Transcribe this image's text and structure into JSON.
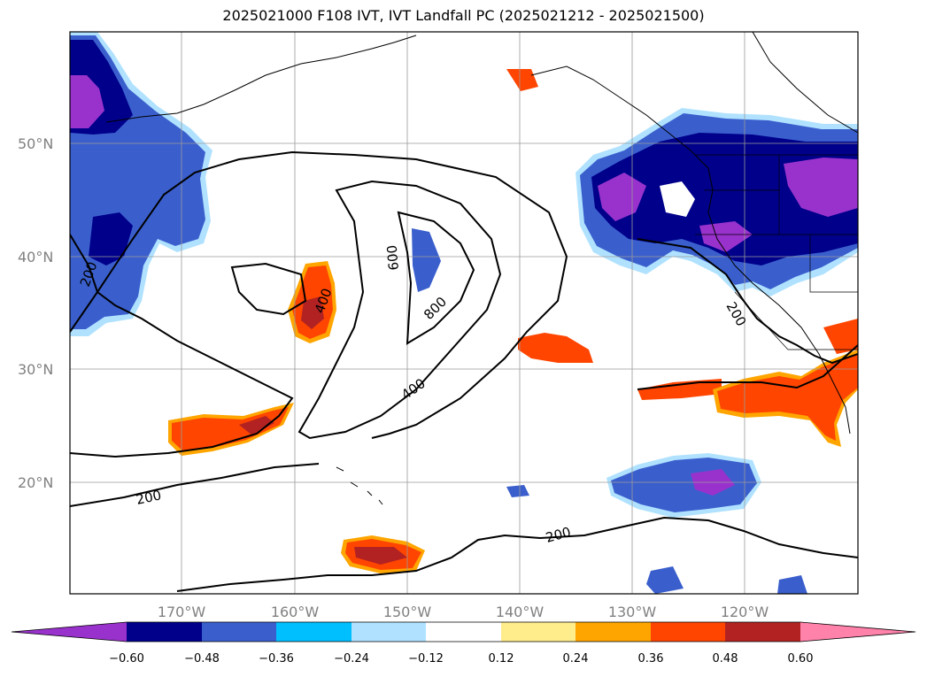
{
  "title": "2025021000 F108 IVT, IVT Landfall PC (2025021212 - 2025021500)",
  "map": {
    "lat_labels": [
      "50°N",
      "40°N",
      "30°N",
      "20°N"
    ],
    "lon_labels": [
      "170°W",
      "160°W",
      "150°W",
      "140°W",
      "130°W",
      "120°W"
    ],
    "contour_labels": [
      "200",
      "400",
      "600",
      "800",
      "400",
      "200",
      "200",
      "200"
    ]
  },
  "colorbar": {
    "colors": [
      "#9932cc",
      "#00008b",
      "#3a5fcd",
      "#00bfff",
      "#b0e2ff",
      "#ffffff",
      "#ffec8b",
      "#ffa500",
      "#ff4500",
      "#b22222",
      "#ff82ab"
    ],
    "tick_labels": [
      "−0.60",
      "−0.48",
      "−0.36",
      "−0.24",
      "−0.12",
      "0.12",
      "0.24",
      "0.36",
      "0.48",
      "0.60"
    ]
  }
}
